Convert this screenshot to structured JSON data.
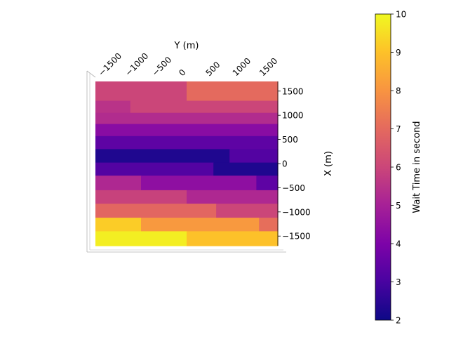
{
  "chart_data": {
    "type": "heatmap",
    "view": "3D surface seen from above",
    "title": "",
    "xlabel": "X (m)",
    "ylabel": "Y (m)",
    "colorbar_label": "Wait Time in second",
    "colormap": "plasma",
    "color_range": [
      2,
      10
    ],
    "colorbar_ticks": [
      "2",
      "3",
      "4",
      "5",
      "6",
      "7",
      "8",
      "9",
      "10"
    ],
    "x_range": [
      -1700,
      1700
    ],
    "y_range": [
      -1700,
      1700
    ],
    "x_ticks": [
      1500,
      1000,
      500,
      0,
      -500,
      -1000,
      -1500
    ],
    "x_tick_labels": [
      "1500",
      "1000",
      "500",
      "0",
      "−500",
      "−1000",
      "−1500"
    ],
    "y_ticks": [
      -1500,
      -1000,
      -500,
      0,
      500,
      1000,
      1500
    ],
    "y_tick_labels": [
      "−1500",
      "−1000",
      "−500",
      "0",
      "500",
      "1000",
      "1500"
    ],
    "grid": false,
    "bands": [
      {
        "x_range": [
          1300,
          1700
        ],
        "segments": [
          {
            "y": [
              -1700,
              0
            ],
            "value": 6.0
          },
          {
            "y": [
              0,
              1700
            ],
            "value": 7.0
          }
        ]
      },
      {
        "x_range": [
          1050,
          1300
        ],
        "segments": [
          {
            "y": [
              -1700,
              -1050
            ],
            "value": 5.5
          },
          {
            "y": [
              -1050,
              1700
            ],
            "value": 6.0
          }
        ]
      },
      {
        "x_range": [
          820,
          1050
        ],
        "segments": [
          {
            "y": [
              -1700,
              1700
            ],
            "value": 5.3
          }
        ]
      },
      {
        "x_range": [
          570,
          820
        ],
        "segments": [
          {
            "y": [
              -1700,
              1700
            ],
            "value": 4.3
          }
        ]
      },
      {
        "x_range": [
          300,
          570
        ],
        "segments": [
          {
            "y": [
              -1700,
              1700
            ],
            "value": 3.4
          }
        ]
      },
      {
        "x_range": [
          20,
          300
        ],
        "segments": [
          {
            "y": [
              -1700,
              800
            ],
            "value": 2.3
          },
          {
            "y": [
              800,
              1700
            ],
            "value": 3.2
          }
        ]
      },
      {
        "x_range": [
          -250,
          20
        ],
        "segments": [
          {
            "y": [
              -1700,
              500
            ],
            "value": 3.2
          },
          {
            "y": [
              500,
              1700
            ],
            "value": 2.3
          }
        ]
      },
      {
        "x_range": [
          -550,
          -250
        ],
        "segments": [
          {
            "y": [
              -1700,
              -850
            ],
            "value": 5.2
          },
          {
            "y": [
              -850,
              1300
            ],
            "value": 4.4
          },
          {
            "y": [
              1300,
              1700
            ],
            "value": 3.4
          }
        ]
      },
      {
        "x_range": [
          -830,
          -550
        ],
        "segments": [
          {
            "y": [
              -1700,
              0
            ],
            "value": 5.9
          },
          {
            "y": [
              0,
              1700
            ],
            "value": 5.2
          }
        ]
      },
      {
        "x_range": [
          -1120,
          -830
        ],
        "segments": [
          {
            "y": [
              -1700,
              550
            ],
            "value": 6.9
          },
          {
            "y": [
              550,
              1700
            ],
            "value": 6.0
          }
        ]
      },
      {
        "x_range": [
          -1400,
          -1120
        ],
        "segments": [
          {
            "y": [
              -1700,
              -850
            ],
            "value": 9.2
          },
          {
            "y": [
              -850,
              1350
            ],
            "value": 8.1
          },
          {
            "y": [
              1350,
              1700
            ],
            "value": 7.1
          }
        ]
      },
      {
        "x_range": [
          -1700,
          -1400
        ],
        "segments": [
          {
            "y": [
              -1700,
              0
            ],
            "value": 9.8
          },
          {
            "y": [
              0,
              1700
            ],
            "value": 9.0
          }
        ]
      }
    ]
  }
}
